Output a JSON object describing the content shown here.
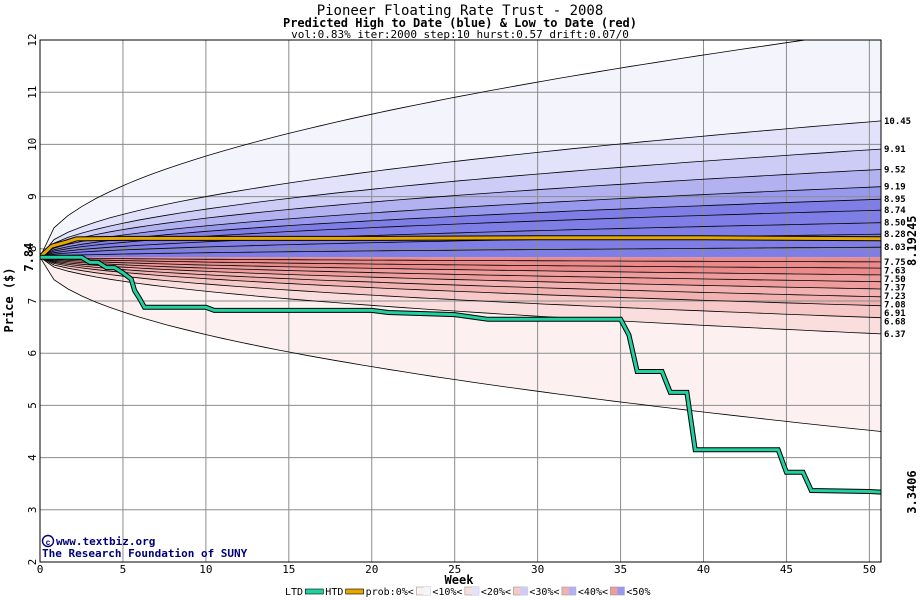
{
  "chart_data": {
    "type": "area",
    "title": "Pioneer Floating Rate Trust - 2008",
    "subtitle": "Predicted High to Date (blue) &  Low to Date (red)",
    "params": "vol:0.83% iter:2000 step:10 hurst:0.57 drift:0.07/0",
    "xlabel": "Week",
    "ylabel": "Price ($)",
    "xlim": [
      0,
      50.7
    ],
    "ylim": [
      2,
      12
    ],
    "x_ticks": [
      0,
      5,
      10,
      15,
      20,
      25,
      30,
      35,
      40,
      45,
      50
    ],
    "y_ticks": [
      2,
      3,
      4,
      5,
      6,
      7,
      8,
      9,
      10,
      11,
      12
    ],
    "grid": true,
    "start_price_label": "7.84",
    "start_price": 7.84,
    "htd_end_label": "8.19245",
    "ltd_end_label": "3.3406",
    "band_end_labels": [
      "10.45",
      "9.91",
      "9.52",
      "9.19",
      "8.95",
      "8.74",
      "8.50",
      "8.28",
      "8.03",
      "7.75",
      "7.63",
      "7.50",
      "7.37",
      "7.23",
      "7.08",
      "6.91",
      "6.68",
      "6.37"
    ],
    "band_end_values": [
      10.45,
      9.91,
      9.52,
      9.19,
      8.95,
      8.74,
      8.5,
      8.28,
      8.03,
      7.75,
      7.63,
      7.5,
      7.37,
      7.23,
      7.08,
      6.91,
      6.68,
      6.37
    ],
    "outer_envelope": {
      "upper_end": 12.2,
      "lower_end": 4.5
    },
    "colors": {
      "htd": "#e6a800",
      "ltd": "#20d0a0",
      "blue_levels": [
        "#f4f4fd",
        "#e2e2fa",
        "#ccccf6",
        "#b2b2f1",
        "#9898ec",
        "#7e7ee6"
      ],
      "red_levels": [
        "#fdf0f0",
        "#fadede",
        "#f6c8c8",
        "#f2b2b2",
        "#ee9c9c",
        "#ea8a8a"
      ]
    },
    "series": [
      {
        "name": "HTD",
        "x": [
          0,
          0.7,
          1.5,
          2.2,
          5,
          10,
          20,
          30,
          40,
          50.7
        ],
        "y": [
          7.84,
          8.05,
          8.12,
          8.19,
          8.2,
          8.2,
          8.2,
          8.21,
          8.21,
          8.19245
        ]
      },
      {
        "name": "LTD",
        "x": [
          0,
          1.5,
          2.5,
          3,
          3.5,
          4,
          4.5,
          5,
          5.5,
          5.7,
          6,
          6.3,
          10,
          10.5,
          20,
          21,
          25,
          27,
          35,
          35.5,
          36,
          37.5,
          38,
          39,
          39.5,
          42,
          44.5,
          45,
          46,
          46.5,
          50,
          50.7
        ],
        "y": [
          7.84,
          7.84,
          7.84,
          7.74,
          7.74,
          7.64,
          7.64,
          7.54,
          7.42,
          7.2,
          7.05,
          6.88,
          6.88,
          6.82,
          6.82,
          6.78,
          6.74,
          6.65,
          6.65,
          6.35,
          5.65,
          5.65,
          5.25,
          5.25,
          4.15,
          4.15,
          4.15,
          3.72,
          3.72,
          3.37,
          3.35,
          3.34
        ]
      }
    ],
    "legend": {
      "placement": "bottom",
      "items": [
        "LTD",
        "HTD",
        "prob:0%<",
        "<10%<",
        "<20%<",
        "<30%<",
        "<40%<",
        "<50%"
      ]
    },
    "watermark": {
      "line1": "www.textbiz.org",
      "line2": "The Research Foundation of SUNY"
    }
  }
}
